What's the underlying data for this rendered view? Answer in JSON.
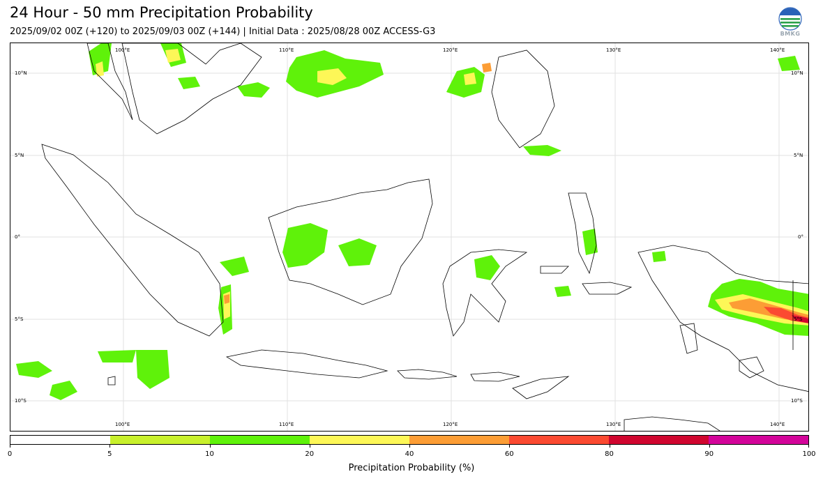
{
  "header": {
    "title": "24 Hour - 50 mm Precipitation Probability",
    "subtitle": "2025/09/02 00Z (+120) to 2025/09/03 00Z (+144) | Initial Data : 2025/08/28 00Z ACCESS-G3",
    "logo_text": "BMKG",
    "logo_icon": "bmkg-logo-icon"
  },
  "map": {
    "lon_labels": [
      "100°E",
      "110°E",
      "120°E",
      "130°E",
      "140°E"
    ],
    "lat_labels": [
      "10°N",
      "5°N",
      "0°",
      "5°S",
      "10°S"
    ],
    "grid": true,
    "colors": {
      "land_outline": "#000000",
      "grid": "#dcdcdc"
    }
  },
  "colorbar": {
    "label": "Precipitation Probability (%)",
    "ticks": [
      "0",
      "5",
      "10",
      "20",
      "40",
      "60",
      "80",
      "90",
      "100"
    ],
    "colors": [
      "#ffffff",
      "#c8f02c",
      "#5ff20a",
      "#fdf757",
      "#fc9d35",
      "#fb4a31",
      "#d0062f",
      "#d3049a"
    ]
  }
}
